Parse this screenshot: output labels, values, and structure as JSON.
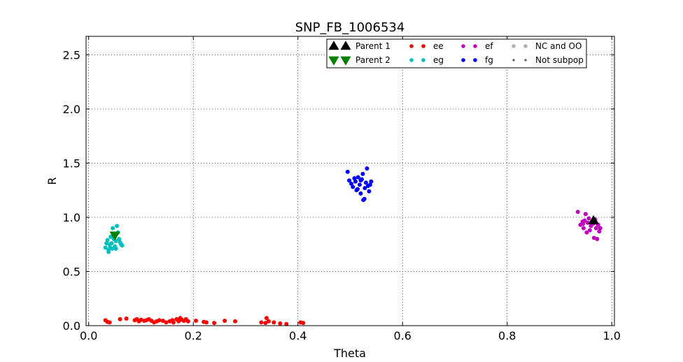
{
  "chart_data": {
    "type": "scatter",
    "title": "SNP_FB_1006534",
    "xlabel": "Theta",
    "ylabel": "R",
    "xlim": [
      -0.005,
      1.005
    ],
    "ylim": [
      0,
      2.67
    ],
    "xticks": [
      0.0,
      0.2,
      0.4,
      0.6,
      0.8,
      1.0
    ],
    "xtick_labels": [
      "0.0",
      "0.2",
      "0.4",
      "0.6",
      "0.8",
      "1.0"
    ],
    "yticks": [
      0.0,
      0.5,
      1.0,
      1.5,
      2.0,
      2.5
    ],
    "ytick_labels": [
      "0.0",
      "0.5",
      "1.0",
      "1.5",
      "2.0",
      "2.5"
    ],
    "grid": true,
    "legend_position": "top-right",
    "legend": [
      {
        "label": "Parent 1",
        "marker": "triangle-up",
        "color": "#000000"
      },
      {
        "label": "ee",
        "marker": "dot",
        "color": "#ff0000"
      },
      {
        "label": "ef",
        "marker": "dot",
        "color": "#bf00bf"
      },
      {
        "label": "NC and OO",
        "marker": "dot",
        "color": "#b0b0b0"
      },
      {
        "label": "Parent 2",
        "marker": "triangle-down",
        "color": "#008000"
      },
      {
        "label": "eg",
        "marker": "dot",
        "color": "#00bfbf"
      },
      {
        "label": "fg",
        "marker": "dot",
        "color": "#0000ff"
      },
      {
        "label": "Not subpop",
        "marker": "small-dot",
        "color": "#555555"
      }
    ],
    "series": [
      {
        "name": "ee",
        "color": "#ff0000",
        "points": [
          [
            0.032,
            0.05
          ],
          [
            0.036,
            0.035
          ],
          [
            0.04,
            0.03
          ],
          [
            0.06,
            0.06
          ],
          [
            0.072,
            0.065
          ],
          [
            0.088,
            0.05
          ],
          [
            0.092,
            0.06
          ],
          [
            0.096,
            0.04
          ],
          [
            0.1,
            0.055
          ],
          [
            0.106,
            0.045
          ],
          [
            0.11,
            0.05
          ],
          [
            0.115,
            0.06
          ],
          [
            0.12,
            0.045
          ],
          [
            0.125,
            0.03
          ],
          [
            0.13,
            0.04
          ],
          [
            0.135,
            0.05
          ],
          [
            0.142,
            0.045
          ],
          [
            0.148,
            0.03
          ],
          [
            0.155,
            0.04
          ],
          [
            0.16,
            0.05
          ],
          [
            0.162,
            0.03
          ],
          [
            0.168,
            0.06
          ],
          [
            0.172,
            0.04
          ],
          [
            0.175,
            0.07
          ],
          [
            0.178,
            0.055
          ],
          [
            0.182,
            0.045
          ],
          [
            0.186,
            0.06
          ],
          [
            0.19,
            0.04
          ],
          [
            0.205,
            0.045
          ],
          [
            0.22,
            0.035
          ],
          [
            0.225,
            0.03
          ],
          [
            0.24,
            0.025
          ],
          [
            0.26,
            0.045
          ],
          [
            0.28,
            0.04
          ],
          [
            0.33,
            0.03
          ],
          [
            0.338,
            0.025
          ],
          [
            0.34,
            0.07
          ],
          [
            0.344,
            0.04
          ],
          [
            0.354,
            0.03
          ],
          [
            0.366,
            0.02
          ],
          [
            0.378,
            0.015
          ],
          [
            0.405,
            0.03
          ],
          [
            0.41,
            0.025
          ]
        ]
      },
      {
        "name": "eg",
        "color": "#00bfbf",
        "points": [
          [
            0.032,
            0.72
          ],
          [
            0.034,
            0.76
          ],
          [
            0.036,
            0.79
          ],
          [
            0.038,
            0.7
          ],
          [
            0.04,
            0.75
          ],
          [
            0.041,
            0.72
          ],
          [
            0.042,
            0.82
          ],
          [
            0.044,
            0.76
          ],
          [
            0.045,
            0.71
          ],
          [
            0.046,
            0.9
          ],
          [
            0.048,
            0.8
          ],
          [
            0.05,
            0.73
          ],
          [
            0.052,
            0.78
          ],
          [
            0.054,
            0.92
          ],
          [
            0.056,
            0.86
          ],
          [
            0.058,
            0.8
          ],
          [
            0.06,
            0.77
          ],
          [
            0.062,
            0.75
          ],
          [
            0.064,
            0.74
          ],
          [
            0.038,
            0.68
          ],
          [
            0.046,
            0.83
          ],
          [
            0.052,
            0.71
          ]
        ]
      },
      {
        "name": "ef",
        "color": "#bf00bf",
        "points": [
          [
            0.935,
            1.05
          ],
          [
            0.94,
            0.93
          ],
          [
            0.944,
            0.96
          ],
          [
            0.946,
            0.9
          ],
          [
            0.948,
            0.97
          ],
          [
            0.95,
            1.03
          ],
          [
            0.952,
            0.86
          ],
          [
            0.954,
            0.95
          ],
          [
            0.956,
            0.99
          ],
          [
            0.958,
            0.88
          ],
          [
            0.96,
            0.92
          ],
          [
            0.962,
            0.96
          ],
          [
            0.964,
            0.94
          ],
          [
            0.966,
            0.81
          ],
          [
            0.968,
            0.98
          ],
          [
            0.97,
            0.9
          ],
          [
            0.972,
            0.8
          ],
          [
            0.974,
            0.93
          ],
          [
            0.976,
            0.87
          ],
          [
            0.978,
            0.9
          ],
          [
            0.945,
            0.94
          ],
          [
            0.97,
            0.95
          ]
        ]
      },
      {
        "name": "fg",
        "color": "#0000ff",
        "points": [
          [
            0.495,
            1.42
          ],
          [
            0.498,
            1.34
          ],
          [
            0.502,
            1.31
          ],
          [
            0.505,
            1.28
          ],
          [
            0.508,
            1.36
          ],
          [
            0.51,
            1.33
          ],
          [
            0.512,
            1.25
          ],
          [
            0.515,
            1.37
          ],
          [
            0.518,
            1.3
          ],
          [
            0.52,
            1.22
          ],
          [
            0.522,
            1.35
          ],
          [
            0.524,
            1.4
          ],
          [
            0.525,
            1.16
          ],
          [
            0.527,
            1.17
          ],
          [
            0.528,
            1.27
          ],
          [
            0.53,
            1.32
          ],
          [
            0.532,
            1.45
          ],
          [
            0.534,
            1.29
          ],
          [
            0.536,
            1.24
          ],
          [
            0.538,
            1.3
          ],
          [
            0.54,
            1.33
          ],
          [
            0.514,
            1.26
          ],
          [
            0.52,
            1.34
          ]
        ]
      }
    ],
    "parents": [
      {
        "name": "Parent 1",
        "marker": "triangle-up",
        "color": "#000000",
        "x": 0.965,
        "y": 0.97
      },
      {
        "name": "Parent 2",
        "marker": "triangle-down",
        "color": "#008000",
        "x": 0.05,
        "y": 0.835
      }
    ]
  }
}
